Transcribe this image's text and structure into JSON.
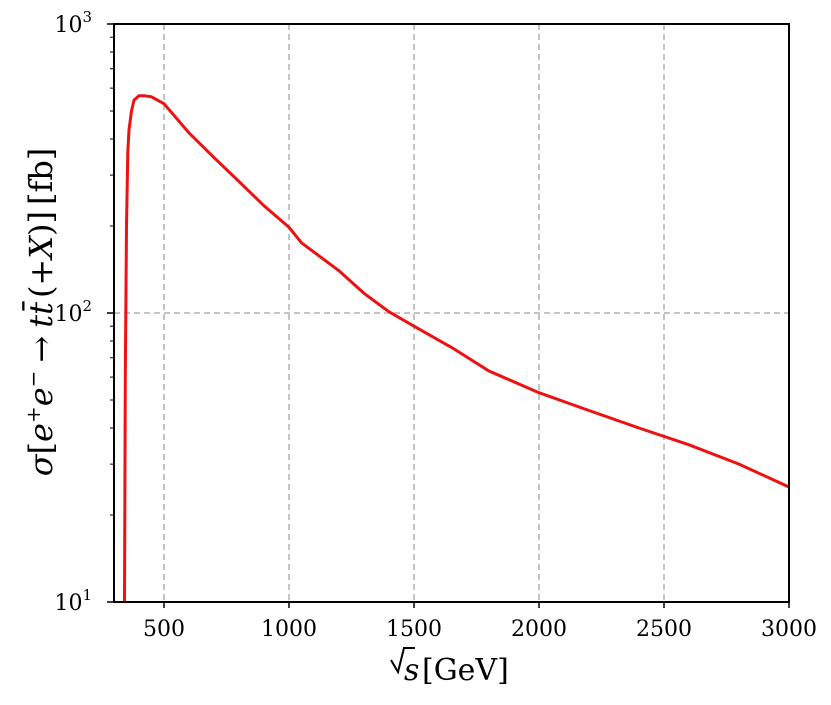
{
  "chart_data": {
    "type": "line",
    "xlabel_parts": {
      "sqrt": "√",
      "var": "s",
      "unit": "[GeV]"
    },
    "ylabel_parts": {
      "sigma": "σ",
      "open": "[",
      "e1": "e",
      "e1sup": "+",
      "e2": "e",
      "e2sup": "−",
      "arrow": "→",
      "t": "t",
      "tbar": "t",
      "bar": "¯",
      "plusx": "(+",
      "X": "X",
      "close": ")]",
      "unit": "[fb]"
    },
    "x_ticks": [
      500,
      1000,
      1500,
      2000,
      2500,
      3000
    ],
    "x_tick_labels": [
      "500",
      "1000",
      "1500",
      "2000",
      "2500",
      "3000"
    ],
    "y_ticks": [
      10,
      100,
      1000
    ],
    "y_tick_labels": [
      {
        "base": "10",
        "exp": "1"
      },
      {
        "base": "10",
        "exp": "2"
      },
      {
        "base": "10",
        "exp": "3"
      }
    ],
    "xlim": [
      300,
      3000
    ],
    "ylim": [
      10,
      1000
    ],
    "yscale": "log",
    "grid": true,
    "series_color": "#ee1111",
    "x": [
      342,
      345,
      350,
      355,
      360,
      370,
      380,
      400,
      420,
      450,
      500,
      600,
      700,
      800,
      900,
      1000,
      1050,
      1200,
      1300,
      1400,
      1500,
      1650,
      1800,
      2000,
      2200,
      2400,
      2600,
      2800,
      3000
    ],
    "y": [
      10,
      60,
      200,
      360,
      430,
      500,
      545,
      565,
      565,
      560,
      530,
      420,
      345,
      285,
      235,
      198,
      175,
      140,
      117,
      101,
      90,
      76,
      63,
      53,
      46,
      40,
      35,
      30,
      25
    ]
  }
}
